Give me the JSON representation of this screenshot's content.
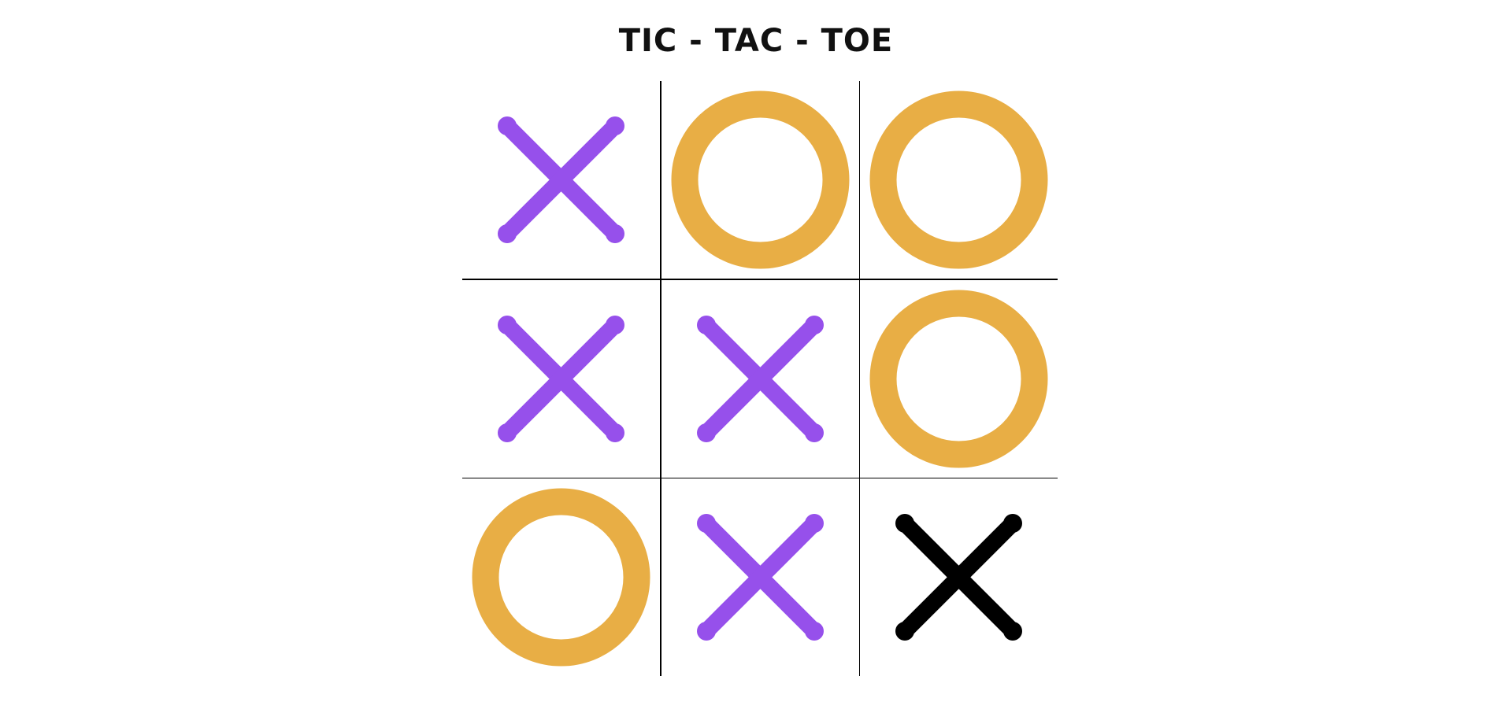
{
  "title": "TIC - TAC - TOE",
  "colors": {
    "x": "#9650eb",
    "o": "#e8ae45",
    "x_last": "#000000",
    "grid": "#000000",
    "background": "#ffffff"
  },
  "board": {
    "cells": [
      {
        "mark": "X",
        "icon": "x-mark-icon",
        "highlight": false
      },
      {
        "mark": "O",
        "icon": "o-mark-icon",
        "highlight": false
      },
      {
        "mark": "O",
        "icon": "o-mark-icon",
        "highlight": false
      },
      {
        "mark": "X",
        "icon": "x-mark-icon",
        "highlight": false
      },
      {
        "mark": "X",
        "icon": "x-mark-icon",
        "highlight": false
      },
      {
        "mark": "O",
        "icon": "o-mark-icon",
        "highlight": false
      },
      {
        "mark": "O",
        "icon": "o-mark-icon",
        "highlight": false
      },
      {
        "mark": "X",
        "icon": "x-mark-icon",
        "highlight": false
      },
      {
        "mark": "X",
        "icon": "x-mark-icon",
        "highlight": true
      }
    ]
  }
}
